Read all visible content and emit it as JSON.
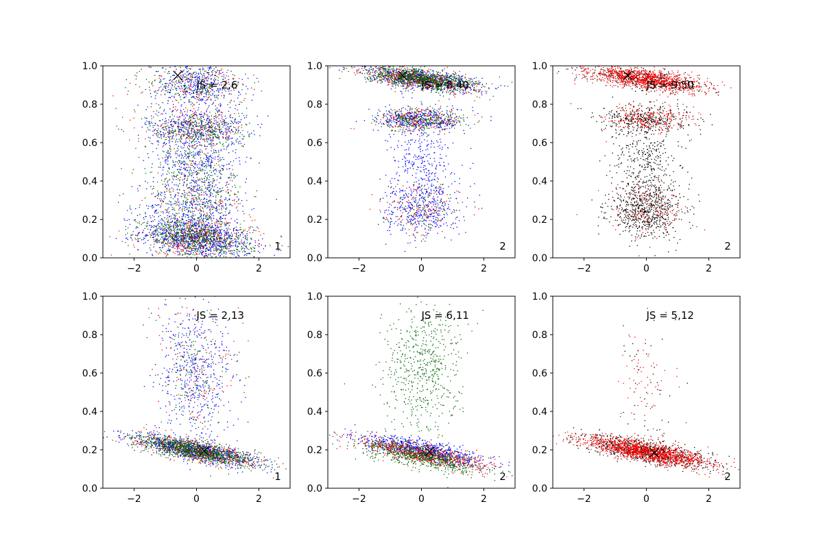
{
  "chart_data": [
    {
      "type": "scatter",
      "panel": 1,
      "xlim": [
        -3,
        3
      ],
      "ylim": [
        0,
        1
      ],
      "xticks": [
        -2,
        0,
        2
      ],
      "xtick_labels": [
        "−2",
        "0",
        "2"
      ],
      "yticks": [
        0,
        0.2,
        0.4,
        0.6,
        0.8,
        1.0
      ],
      "ytick_labels": [
        "0.0",
        "0.2",
        "0.4",
        "0.6",
        "0.8",
        "1.0"
      ],
      "annotation": "JS = 2,6",
      "annotation_pos": [
        0,
        0.9
      ],
      "corner_label": "1",
      "marker": {
        "symbol": "x",
        "x": -0.6,
        "y": 0.95
      },
      "series": [
        {
          "color": "#0000ff",
          "clusters": [
            {
              "cx": 0,
              "cy": 0.1,
              "sx": 0.9,
              "sy": 0.05,
              "slope": -0.02,
              "n": 900
            },
            {
              "cx": 0,
              "cy": 0.27,
              "sx": 0.8,
              "sy": 0.08,
              "slope": 0,
              "n": 400
            },
            {
              "cx": 0,
              "cy": 0.5,
              "sx": 0.7,
              "sy": 0.07,
              "slope": 0,
              "n": 300
            },
            {
              "cx": 0,
              "cy": 0.68,
              "sx": 0.8,
              "sy": 0.05,
              "slope": 0,
              "n": 450
            },
            {
              "cx": 0,
              "cy": 0.9,
              "sx": 0.7,
              "sy": 0.06,
              "slope": 0,
              "n": 400
            }
          ]
        },
        {
          "color": "#ff0000",
          "clusters": [
            {
              "cx": 0,
              "cy": 0.1,
              "sx": 0.9,
              "sy": 0.05,
              "slope": 0,
              "n": 350
            },
            {
              "cx": 0,
              "cy": 0.3,
              "sx": 0.8,
              "sy": 0.1,
              "slope": 0,
              "n": 150
            },
            {
              "cx": 0,
              "cy": 0.67,
              "sx": 0.8,
              "sy": 0.05,
              "slope": 0,
              "n": 200
            },
            {
              "cx": 0,
              "cy": 0.9,
              "sx": 0.8,
              "sy": 0.06,
              "slope": 0,
              "n": 150
            }
          ]
        },
        {
          "color": "#006400",
          "clusters": [
            {
              "cx": 0,
              "cy": 0.1,
              "sx": 0.9,
              "sy": 0.05,
              "slope": -0.02,
              "n": 700
            },
            {
              "cx": 0,
              "cy": 0.3,
              "sx": 0.8,
              "sy": 0.1,
              "slope": 0,
              "n": 350
            },
            {
              "cx": 0,
              "cy": 0.5,
              "sx": 0.7,
              "sy": 0.08,
              "slope": 0,
              "n": 200
            },
            {
              "cx": 0,
              "cy": 0.67,
              "sx": 0.8,
              "sy": 0.05,
              "slope": 0,
              "n": 350
            },
            {
              "cx": 0,
              "cy": 0.9,
              "sx": 0.8,
              "sy": 0.06,
              "slope": 0,
              "n": 250
            }
          ]
        }
      ]
    },
    {
      "type": "scatter",
      "panel": 2,
      "xlim": [
        -3,
        3
      ],
      "ylim": [
        0,
        1
      ],
      "xticks": [
        -2,
        0,
        2
      ],
      "xtick_labels": [
        "−2",
        "0",
        "2"
      ],
      "yticks": [
        0,
        0.2,
        0.4,
        0.6,
        0.8,
        1.0
      ],
      "ytick_labels": [
        "0.0",
        "0.2",
        "0.4",
        "0.6",
        "0.8",
        "1.0"
      ],
      "annotation": "JS = 8,40",
      "annotation_pos": [
        0,
        0.9
      ],
      "corner_label": "2",
      "marker": {
        "symbol": "x",
        "x": -0.6,
        "y": 0.95
      },
      "series": [
        {
          "color": "#0000ff",
          "clusters": [
            {
              "cx": 0,
              "cy": 0.93,
              "sx": 0.9,
              "sy": 0.025,
              "slope": -0.02,
              "n": 700
            },
            {
              "cx": 0,
              "cy": 0.72,
              "sx": 0.7,
              "sy": 0.03,
              "slope": 0,
              "n": 400
            },
            {
              "cx": 0,
              "cy": 0.5,
              "sx": 0.5,
              "sy": 0.1,
              "slope": 0,
              "n": 300
            },
            {
              "cx": 0,
              "cy": 0.25,
              "sx": 0.6,
              "sy": 0.07,
              "slope": 0,
              "n": 400
            }
          ]
        },
        {
          "color": "#ff0000",
          "clusters": [
            {
              "cx": 0,
              "cy": 0.93,
              "sx": 0.9,
              "sy": 0.025,
              "slope": -0.02,
              "n": 500
            },
            {
              "cx": 0,
              "cy": 0.72,
              "sx": 0.7,
              "sy": 0.03,
              "slope": 0,
              "n": 200
            },
            {
              "cx": 0,
              "cy": 0.25,
              "sx": 0.6,
              "sy": 0.07,
              "slope": 0,
              "n": 120
            }
          ]
        },
        {
          "color": "#006400",
          "clusters": [
            {
              "cx": 0,
              "cy": 0.93,
              "sx": 0.9,
              "sy": 0.025,
              "slope": -0.02,
              "n": 900
            },
            {
              "cx": 0,
              "cy": 0.72,
              "sx": 0.7,
              "sy": 0.03,
              "slope": 0,
              "n": 300
            },
            {
              "cx": 0,
              "cy": 0.25,
              "sx": 0.6,
              "sy": 0.07,
              "slope": 0,
              "n": 120
            }
          ]
        }
      ]
    },
    {
      "type": "scatter",
      "panel": 3,
      "xlim": [
        -3,
        3
      ],
      "ylim": [
        0,
        1
      ],
      "xticks": [
        -2,
        0,
        2
      ],
      "xtick_labels": [
        "−2",
        "0",
        "2"
      ],
      "yticks": [
        0,
        0.2,
        0.4,
        0.6,
        0.8,
        1.0
      ],
      "ytick_labels": [
        "0.0",
        "0.2",
        "0.4",
        "0.6",
        "0.8",
        "1.0"
      ],
      "annotation": "JS = 9,50",
      "annotation_pos": [
        0,
        0.9
      ],
      "corner_label": "2",
      "marker": {
        "symbol": "x",
        "x": -0.6,
        "y": 0.95
      },
      "series": [
        {
          "color": "#000000",
          "clusters": [
            {
              "cx": 0,
              "cy": 0.93,
              "sx": 0.9,
              "sy": 0.025,
              "slope": -0.02,
              "n": 400
            },
            {
              "cx": 0,
              "cy": 0.72,
              "sx": 0.7,
              "sy": 0.04,
              "slope": 0,
              "n": 400
            },
            {
              "cx": 0,
              "cy": 0.5,
              "sx": 0.5,
              "sy": 0.1,
              "slope": 0,
              "n": 300
            },
            {
              "cx": 0,
              "cy": 0.25,
              "sx": 0.6,
              "sy": 0.07,
              "slope": 0,
              "n": 700
            }
          ]
        },
        {
          "color": "#ff0000",
          "clusters": [
            {
              "cx": 0,
              "cy": 0.93,
              "sx": 0.9,
              "sy": 0.025,
              "slope": -0.02,
              "n": 1100
            },
            {
              "cx": 0,
              "cy": 0.72,
              "sx": 0.7,
              "sy": 0.04,
              "slope": 0,
              "n": 250
            },
            {
              "cx": 0,
              "cy": 0.25,
              "sx": 0.6,
              "sy": 0.07,
              "slope": 0,
              "n": 150
            }
          ]
        }
      ]
    },
    {
      "type": "scatter",
      "panel": 4,
      "xlim": [
        -3,
        3
      ],
      "ylim": [
        0,
        1
      ],
      "xticks": [
        -2,
        0,
        2
      ],
      "xtick_labels": [
        "−2",
        "0",
        "2"
      ],
      "yticks": [
        0,
        0.2,
        0.4,
        0.6,
        0.8,
        1.0
      ],
      "ytick_labels": [
        "0.0",
        "0.2",
        "0.4",
        "0.6",
        "0.8",
        "1.0"
      ],
      "annotation": "JS = 2,13",
      "annotation_pos": [
        0,
        0.9
      ],
      "corner_label": "1",
      "marker": {
        "symbol": "x",
        "x": 0.25,
        "y": 0.195
      },
      "series": [
        {
          "color": "#0000ff",
          "clusters": [
            {
              "cx": 0,
              "cy": 0.195,
              "sx": 1.0,
              "sy": 0.025,
              "slope": -0.03,
              "n": 900
            },
            {
              "cx": 0,
              "cy": 0.6,
              "sx": 0.6,
              "sy": 0.18,
              "slope": 0,
              "n": 500
            }
          ]
        },
        {
          "color": "#ff0000",
          "clusters": [
            {
              "cx": 0,
              "cy": 0.195,
              "sx": 1.0,
              "sy": 0.025,
              "slope": -0.03,
              "n": 500
            },
            {
              "cx": 0,
              "cy": 0.6,
              "sx": 0.6,
              "sy": 0.18,
              "slope": 0,
              "n": 120
            }
          ]
        },
        {
          "color": "#006400",
          "clusters": [
            {
              "cx": 0,
              "cy": 0.195,
              "sx": 1.0,
              "sy": 0.025,
              "slope": -0.03,
              "n": 1000
            },
            {
              "cx": 0,
              "cy": 0.6,
              "sx": 0.6,
              "sy": 0.18,
              "slope": 0,
              "n": 180
            }
          ]
        }
      ]
    },
    {
      "type": "scatter",
      "panel": 5,
      "xlim": [
        -3,
        3
      ],
      "ylim": [
        0,
        1
      ],
      "xticks": [
        -2,
        0,
        2
      ],
      "xtick_labels": [
        "−2",
        "0",
        "2"
      ],
      "yticks": [
        0,
        0.2,
        0.4,
        0.6,
        0.8,
        1.0
      ],
      "ytick_labels": [
        "0.0",
        "0.2",
        "0.4",
        "0.6",
        "0.8",
        "1.0"
      ],
      "annotation": "JS = 6,11",
      "annotation_pos": [
        0,
        0.9
      ],
      "corner_label": "2",
      "marker": {
        "symbol": "x",
        "x": 0.25,
        "y": 0.19
      },
      "series": [
        {
          "color": "#0000ff",
          "clusters": [
            {
              "cx": 0,
              "cy": 0.2,
              "sx": 1.0,
              "sy": 0.025,
              "slope": -0.03,
              "n": 800
            }
          ]
        },
        {
          "color": "#ff0000",
          "clusters": [
            {
              "cx": 0,
              "cy": 0.18,
              "sx": 1.0,
              "sy": 0.025,
              "slope": -0.03,
              "n": 700
            }
          ]
        },
        {
          "color": "#006400",
          "clusters": [
            {
              "cx": 0,
              "cy": 0.165,
              "sx": 1.0,
              "sy": 0.03,
              "slope": -0.03,
              "n": 700
            },
            {
              "cx": 0,
              "cy": 0.6,
              "sx": 0.6,
              "sy": 0.18,
              "slope": 0,
              "n": 600
            }
          ]
        }
      ]
    },
    {
      "type": "scatter",
      "panel": 6,
      "xlim": [
        -3,
        3
      ],
      "ylim": [
        0,
        1
      ],
      "xticks": [
        -2,
        0,
        2
      ],
      "xtick_labels": [
        "−2",
        "0",
        "2"
      ],
      "yticks": [
        0,
        0.2,
        0.4,
        0.6,
        0.8,
        1.0
      ],
      "ytick_labels": [
        "0.0",
        "0.2",
        "0.4",
        "0.6",
        "0.8",
        "1.0"
      ],
      "annotation": "JS = 5,12",
      "annotation_pos": [
        0,
        0.9
      ],
      "corner_label": "2",
      "marker": {
        "symbol": "x",
        "x": 0.25,
        "y": 0.185
      },
      "series": [
        {
          "color": "#000000",
          "clusters": [
            {
              "cx": 0,
              "cy": 0.19,
              "sx": 1.0,
              "sy": 0.03,
              "slope": -0.03,
              "n": 800
            },
            {
              "cx": 0,
              "cy": 0.55,
              "sx": 0.45,
              "sy": 0.2,
              "slope": 0,
              "n": 50
            }
          ]
        },
        {
          "color": "#ff0000",
          "clusters": [
            {
              "cx": 0,
              "cy": 0.19,
              "sx": 1.0,
              "sy": 0.025,
              "slope": -0.03,
              "n": 1400
            },
            {
              "cx": 0,
              "cy": 0.55,
              "sx": 0.45,
              "sy": 0.2,
              "slope": 0,
              "n": 70
            }
          ]
        }
      ]
    }
  ]
}
